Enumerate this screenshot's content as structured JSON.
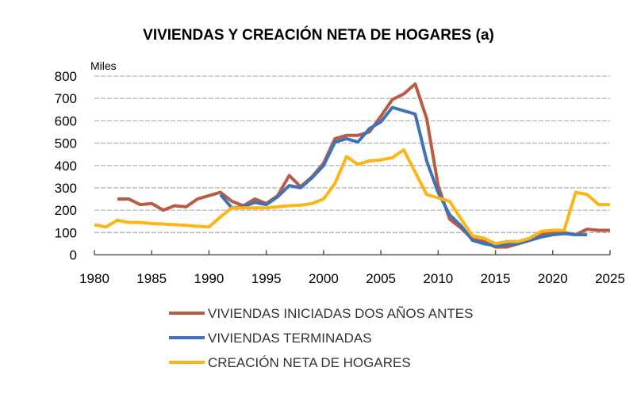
{
  "chart_data": {
    "type": "line",
    "title": "VIVIENDAS Y CREACIÓN NETA DE HOGARES (a)",
    "ylabel": "Miles",
    "xlim": [
      1980,
      2025
    ],
    "ylim": [
      0,
      800
    ],
    "xticks": [
      1980,
      1985,
      1990,
      1995,
      2000,
      2005,
      2010,
      2015,
      2020,
      2025
    ],
    "yticks": [
      0,
      100,
      200,
      300,
      400,
      500,
      600,
      700,
      800
    ],
    "grid": true,
    "legend_position": "bottom",
    "series": [
      {
        "name": "VIVIENDAS INICIADAS DOS AÑOS ANTES",
        "color": "#B85C45",
        "x": [
          1982,
          1983,
          1984,
          1985,
          1986,
          1987,
          1988,
          1989,
          1990,
          1991,
          1992,
          1993,
          1994,
          1995,
          1996,
          1997,
          1998,
          1999,
          2000,
          2001,
          2002,
          2003,
          2004,
          2005,
          2006,
          2007,
          2008,
          2009,
          2010,
          2011,
          2012,
          2013,
          2014,
          2015,
          2016,
          2017,
          2018,
          2019,
          2020,
          2021,
          2022,
          2023,
          2024,
          2025
        ],
        "y": [
          250,
          250,
          225,
          230,
          200,
          220,
          215,
          250,
          265,
          280,
          240,
          220,
          250,
          230,
          265,
          355,
          305,
          350,
          410,
          520,
          535,
          535,
          550,
          620,
          695,
          720,
          765,
          610,
          310,
          160,
          120,
          70,
          60,
          35,
          35,
          50,
          70,
          90,
          100,
          100,
          90,
          115,
          110,
          110
        ]
      },
      {
        "name": "VIVIENDAS TERMINADAS",
        "color": "#3E73B8",
        "x": [
          1991,
          1992,
          1993,
          1994,
          1995,
          1996,
          1997,
          1998,
          1999,
          2000,
          2001,
          2002,
          2003,
          2004,
          2005,
          2006,
          2007,
          2008,
          2009,
          2010,
          2011,
          2012,
          2013,
          2014,
          2015,
          2016,
          2017,
          2018,
          2019,
          2020,
          2021,
          2022,
          2023
        ],
        "y": [
          270,
          210,
          215,
          235,
          225,
          260,
          310,
          300,
          345,
          400,
          505,
          520,
          505,
          565,
          595,
          660,
          645,
          630,
          420,
          280,
          180,
          130,
          65,
          50,
          40,
          45,
          50,
          65,
          80,
          90,
          95,
          90,
          90
        ]
      },
      {
        "name": "CREACIÓN NETA DE HOGARES",
        "color": "#FDB515",
        "x": [
          1980,
          1981,
          1982,
          1983,
          1984,
          1985,
          1986,
          1987,
          1988,
          1989,
          1990,
          1991,
          1992,
          1993,
          1994,
          1995,
          1996,
          1997,
          1998,
          1999,
          2000,
          2001,
          2002,
          2003,
          2004,
          2005,
          2006,
          2007,
          2008,
          2009,
          2010,
          2011,
          2012,
          2013,
          2014,
          2015,
          2016,
          2017,
          2018,
          2019,
          2020,
          2021,
          2022,
          2023,
          2024,
          2025
        ],
        "y": [
          135,
          125,
          155,
          145,
          145,
          140,
          138,
          135,
          132,
          128,
          125,
          170,
          210,
          210,
          210,
          210,
          215,
          220,
          222,
          230,
          250,
          320,
          440,
          405,
          420,
          425,
          435,
          470,
          370,
          270,
          255,
          240,
          160,
          85,
          75,
          50,
          60,
          60,
          75,
          105,
          110,
          110,
          280,
          270,
          225,
          225
        ]
      }
    ]
  }
}
